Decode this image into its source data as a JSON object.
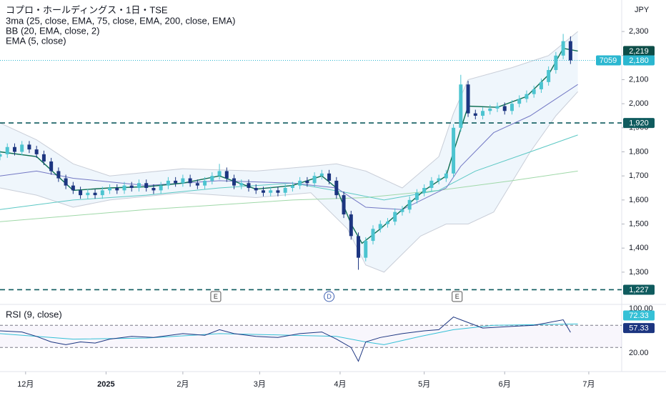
{
  "chart_data": {
    "type": "candlestick",
    "title": "コプロ・ホールディングス・1日・TSE",
    "indicators": [
      "3ma (25, close, EMA, 75, close, EMA, 200, close, EMA)",
      "BB (20, EMA, close, 2)",
      "EMA (5, close)"
    ],
    "currency": "JPY",
    "xlim": [
      0,
      170
    ],
    "xticks": [
      {
        "value": 7,
        "label": "12月"
      },
      {
        "value": 29,
        "label": "2025"
      },
      {
        "value": 50,
        "label": "2月"
      },
      {
        "value": 71,
        "label": "3月"
      },
      {
        "value": 93,
        "label": "4月"
      },
      {
        "value": 116,
        "label": "5月"
      },
      {
        "value": 138,
        "label": "6月"
      },
      {
        "value": 161,
        "label": "7月"
      }
    ],
    "ylim": [
      1169,
      2431
    ],
    "yticks": [
      {
        "value": 1300,
        "label": "1,300"
      },
      {
        "value": 1400,
        "label": "1,400"
      },
      {
        "value": 1500,
        "label": "1,500"
      },
      {
        "value": 1600,
        "label": "1,600"
      },
      {
        "value": 1700,
        "label": "1,700"
      },
      {
        "value": 1800,
        "label": "1,800"
      },
      {
        "value": 1900,
        "label": "1,900"
      },
      {
        "value": 2000,
        "label": "2,000"
      },
      {
        "value": 2100,
        "label": "2,100"
      },
      {
        "value": 2200,
        "label": "2,200"
      },
      {
        "value": 2300,
        "label": "2,300"
      }
    ],
    "up_color": "#4cc4d0",
    "down_color": "#1c3580",
    "candles": {
      "x": [
        0,
        2,
        4,
        6,
        8,
        10,
        12,
        14,
        16,
        18,
        20,
        22,
        24,
        26,
        28,
        30,
        32,
        34,
        36,
        38,
        40,
        42,
        44,
        46,
        48,
        50,
        52,
        54,
        56,
        58,
        60,
        62,
        64,
        66,
        68,
        70,
        72,
        74,
        76,
        78,
        80,
        82,
        84,
        86,
        88,
        90,
        92,
        94,
        96,
        98,
        100,
        102,
        104,
        106,
        108,
        110,
        112,
        114,
        116,
        118,
        120,
        122,
        124,
        126,
        128,
        130,
        132,
        134,
        136,
        138,
        140,
        142,
        144,
        146,
        148,
        150,
        152,
        154,
        156
      ],
      "open": [
        1780,
        1790,
        1820,
        1800,
        1830,
        1810,
        1790,
        1760,
        1720,
        1690,
        1660,
        1640,
        1620,
        1630,
        1620,
        1640,
        1650,
        1640,
        1660,
        1650,
        1670,
        1650,
        1640,
        1660,
        1680,
        1670,
        1690,
        1670,
        1660,
        1680,
        1700,
        1720,
        1690,
        1660,
        1670,
        1650,
        1640,
        1630,
        1640,
        1630,
        1650,
        1660,
        1680,
        1670,
        1700,
        1710,
        1680,
        1620,
        1540,
        1450,
        1360,
        1430,
        1480,
        1500,
        1510,
        1550,
        1560,
        1600,
        1630,
        1650,
        1680,
        1690,
        1710,
        1900,
        2080,
        1960,
        1950,
        1970,
        1980,
        1990,
        1970,
        2000,
        2020,
        2040,
        2060,
        2090,
        2140,
        2200,
        2260
      ],
      "high": [
        1805,
        1835,
        1835,
        1845,
        1845,
        1825,
        1805,
        1775,
        1735,
        1705,
        1675,
        1655,
        1645,
        1645,
        1655,
        1665,
        1665,
        1675,
        1675,
        1685,
        1685,
        1665,
        1675,
        1695,
        1695,
        1705,
        1705,
        1685,
        1695,
        1715,
        1750,
        1735,
        1705,
        1685,
        1685,
        1665,
        1655,
        1655,
        1655,
        1665,
        1675,
        1695,
        1695,
        1715,
        1725,
        1725,
        1695,
        1635,
        1555,
        1465,
        1445,
        1495,
        1515,
        1525,
        1565,
        1575,
        1615,
        1645,
        1665,
        1695,
        1705,
        1725,
        1915,
        2120,
        2095,
        1975,
        1985,
        1995,
        2005,
        2005,
        2015,
        2035,
        2055,
        2075,
        2105,
        2155,
        2215,
        2290,
        2280
      ],
      "low": [
        1765,
        1775,
        1785,
        1785,
        1795,
        1775,
        1745,
        1705,
        1675,
        1645,
        1625,
        1605,
        1605,
        1605,
        1605,
        1625,
        1625,
        1625,
        1635,
        1635,
        1635,
        1625,
        1625,
        1645,
        1655,
        1655,
        1655,
        1645,
        1645,
        1665,
        1685,
        1675,
        1645,
        1645,
        1635,
        1625,
        1615,
        1615,
        1615,
        1615,
        1635,
        1645,
        1655,
        1655,
        1685,
        1665,
        1605,
        1525,
        1435,
        1310,
        1345,
        1415,
        1465,
        1485,
        1495,
        1535,
        1545,
        1585,
        1615,
        1635,
        1665,
        1675,
        1695,
        1885,
        1945,
        1935,
        1935,
        1955,
        1965,
        1955,
        1955,
        1985,
        2005,
        2025,
        2045,
        2075,
        2125,
        2185,
        2165
      ],
      "close": [
        1790,
        1820,
        1800,
        1830,
        1810,
        1790,
        1760,
        1720,
        1690,
        1660,
        1640,
        1620,
        1630,
        1620,
        1640,
        1650,
        1640,
        1660,
        1650,
        1670,
        1650,
        1640,
        1660,
        1680,
        1670,
        1690,
        1670,
        1660,
        1680,
        1700,
        1720,
        1690,
        1660,
        1670,
        1650,
        1640,
        1630,
        1640,
        1630,
        1650,
        1660,
        1680,
        1670,
        1700,
        1710,
        1680,
        1620,
        1540,
        1450,
        1360,
        1430,
        1480,
        1500,
        1510,
        1550,
        1560,
        1600,
        1630,
        1650,
        1680,
        1690,
        1710,
        1900,
        2080,
        1960,
        1950,
        1970,
        1980,
        1990,
        1970,
        2000,
        2020,
        2040,
        2060,
        2090,
        2140,
        2200,
        2260,
        2180
      ]
    },
    "lines": [
      {
        "color": "#9fd8a8",
        "x": [
          0,
          40,
          80,
          100,
          120,
          140,
          158
        ],
        "values": [
          1510,
          1560,
          1600,
          1610,
          1640,
          1680,
          1720
        ]
      },
      {
        "color": "#5cc8c4",
        "x": [
          0,
          20,
          40,
          60,
          80,
          95,
          105,
          120,
          130,
          145,
          158
        ],
        "values": [
          1560,
          1600,
          1620,
          1650,
          1670,
          1630,
          1600,
          1640,
          1720,
          1800,
          1870
        ]
      },
      {
        "color": "#7378c4",
        "x": [
          0,
          10,
          20,
          40,
          60,
          80,
          92,
          100,
          110,
          122,
          126,
          135,
          145,
          158
        ],
        "values": [
          1700,
          1720,
          1690,
          1660,
          1680,
          1670,
          1650,
          1570,
          1560,
          1650,
          1740,
          1880,
          1950,
          2080
        ]
      },
      {
        "color": "#0d6e52",
        "x": [
          0,
          10,
          20,
          30,
          40,
          50,
          60,
          70,
          80,
          88,
          92,
          96,
          99,
          104,
          110,
          116,
          122,
          124,
          128,
          136,
          144,
          150,
          154,
          158
        ],
        "values": [
          1800,
          1780,
          1640,
          1650,
          1655,
          1670,
          1700,
          1645,
          1660,
          1700,
          1650,
          1500,
          1420,
          1480,
          1560,
          1640,
          1700,
          1800,
          1990,
          1985,
          2030,
          2120,
          2230,
          2219
        ]
      }
    ],
    "bb_color": "#c9ced8",
    "bb_fill": "#e8f2fb",
    "bb_upper": {
      "x": [
        0,
        10,
        20,
        30,
        50,
        70,
        85,
        92,
        100,
        110,
        120,
        124,
        128,
        140,
        150,
        158
      ],
      "values": [
        1920,
        1850,
        1750,
        1700,
        1730,
        1720,
        1740,
        1750,
        1720,
        1650,
        1780,
        1960,
        2100,
        2150,
        2200,
        2300
      ]
    },
    "bb_lower": {
      "x": [
        0,
        10,
        20,
        30,
        50,
        70,
        85,
        95,
        100,
        105,
        115,
        122,
        128,
        135,
        145,
        152,
        158
      ],
      "values": [
        1650,
        1620,
        1570,
        1600,
        1630,
        1610,
        1630,
        1480,
        1330,
        1300,
        1450,
        1500,
        1500,
        1550,
        1800,
        1950,
        2050
      ]
    },
    "hlines": [
      {
        "value": 1920,
        "label": "1,920"
      },
      {
        "value": 1227,
        "label": "1,227"
      }
    ],
    "hline_color": "#0f5b5e",
    "price_labels": [
      {
        "value": 2219,
        "label": "2,219",
        "color": "#0d4d48"
      },
      {
        "value": 2180,
        "label": "2,180",
        "color": "#2bb7d0"
      }
    ],
    "last_price": 2180,
    "countdown": "7059",
    "events": [
      {
        "x": 59,
        "label": "E"
      },
      {
        "x": 90,
        "label": "D"
      },
      {
        "x": 125,
        "label": "E"
      }
    ],
    "rsi": {
      "title": "RSI (9, close)",
      "ylim": [
        0,
        100
      ],
      "levels": [
        70,
        30
      ],
      "yticks": [
        {
          "value": 100,
          "label": "100.00"
        },
        {
          "value": 20,
          "label": "20.00"
        }
      ],
      "x": [
        0,
        6,
        10,
        14,
        18,
        22,
        26,
        30,
        36,
        42,
        50,
        56,
        60,
        64,
        70,
        76,
        82,
        88,
        92,
        96,
        98,
        100,
        104,
        110,
        116,
        120,
        124,
        126,
        132,
        140,
        146,
        150,
        154,
        156
      ],
      "values": [
        60,
        58,
        50,
        40,
        35,
        40,
        38,
        45,
        50,
        48,
        55,
        52,
        62,
        55,
        50,
        48,
        55,
        58,
        45,
        30,
        5,
        40,
        48,
        55,
        60,
        62,
        85,
        80,
        65,
        68,
        70,
        75,
        80,
        57.33
      ],
      "value_label": "57.33",
      "color": "#1c3580",
      "ma_x": [
        0,
        20,
        40,
        60,
        80,
        92,
        100,
        105,
        115,
        124,
        135,
        158
      ],
      "ma_values": [
        55,
        45,
        47,
        55,
        52,
        50,
        40,
        35,
        50,
        62,
        70,
        72.33
      ],
      "ma_label": "72.33",
      "ma_color": "#35c0d6"
    }
  }
}
